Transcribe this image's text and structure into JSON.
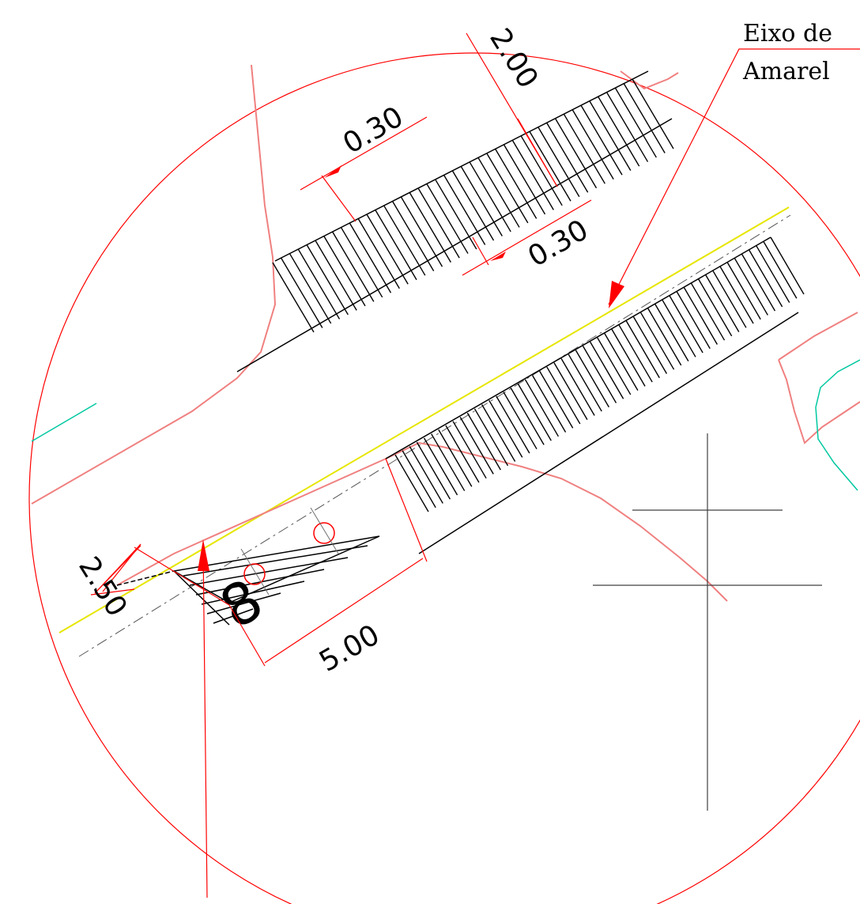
{
  "colors": {
    "detail_circle": "#ff0000",
    "edge_lines": "#f08080",
    "yellow_axis": "#e6e600",
    "cyan_lines": "#00c8a0",
    "hatch": "#000000",
    "centerline": "#404040",
    "dimension": "#ff0000"
  },
  "labels": {
    "note_line1": "Eixo de",
    "note_line2": "Amarel",
    "marker": "8"
  },
  "dimensions": {
    "d_top": "2.00",
    "d_hatch_width": "0.30",
    "d_gap": "0.30",
    "d_left": "2.50",
    "d_bottom": "5.00"
  },
  "icons": {
    "leader_arrow_top": "arrow-icon",
    "leader_arrow_bottom": "arrow-icon"
  }
}
